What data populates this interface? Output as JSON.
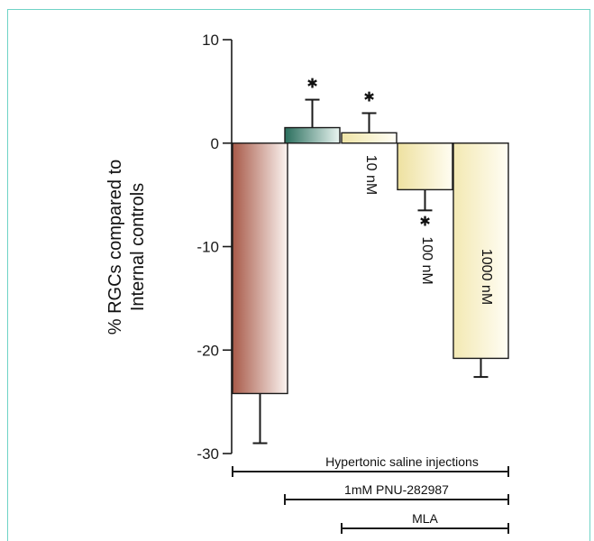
{
  "chart_data": {
    "type": "bar",
    "ylabel_lines": [
      "% RGCs compared to",
      "Internal controls"
    ],
    "ylim": [
      -30,
      10
    ],
    "yticks": [
      10,
      0,
      -10,
      -20,
      -30
    ],
    "categories": [
      "",
      "",
      "10 nM",
      "100 nM",
      "1000 nM"
    ],
    "values": [
      -24.2,
      1.5,
      1.0,
      -4.5,
      -20.8
    ],
    "errors": [
      4.8,
      2.7,
      1.9,
      2.0,
      1.8
    ],
    "significant": [
      false,
      true,
      true,
      true,
      false
    ],
    "significance_symbol": "✱",
    "colors": [
      "#b06a5a",
      "#2f7d68",
      "#eadf9a",
      "#efe3a6",
      "#f2e9b4"
    ],
    "treatments": [
      {
        "label": "Hypertonic saline injections",
        "from_bar": 0,
        "to_bar": 4
      },
      {
        "label": "1mM PNU-282987",
        "from_bar": 1,
        "to_bar": 4
      },
      {
        "label": "MLA",
        "from_bar": 2,
        "to_bar": 4
      }
    ]
  }
}
